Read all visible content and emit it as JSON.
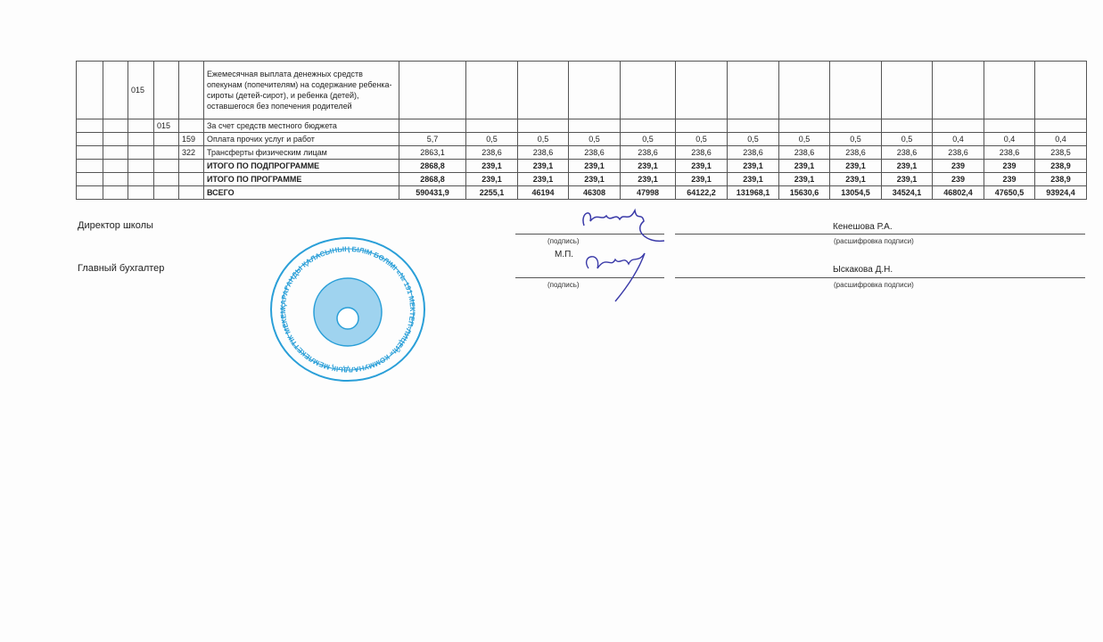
{
  "table": {
    "rows": [
      {
        "c1": "",
        "c2": "",
        "c3": "015",
        "c4": "",
        "c5": "",
        "name": "Ежемесячная выплата денежных средств опекунам (попечителям) на содержание ребенка-сироты (детей-сирот), и ребенка (детей), оставшегося без попечения родителей",
        "values": [
          "",
          "",
          "",
          "",
          "",
          "",
          "",
          "",
          "",
          "",
          "",
          "",
          ""
        ],
        "bold": false
      },
      {
        "c1": "",
        "c2": "",
        "c3": "",
        "c4": "015",
        "c5": "",
        "name": "За счет средств местного бюджета",
        "values": [
          "",
          "",
          "",
          "",
          "",
          "",
          "",
          "",
          "",
          "",
          "",
          "",
          ""
        ],
        "bold": false
      },
      {
        "c1": "",
        "c2": "",
        "c3": "",
        "c4": "",
        "c5": "159",
        "name": "Оплата прочих услуг и работ",
        "values": [
          "5,7",
          "0,5",
          "0,5",
          "0,5",
          "0,5",
          "0,5",
          "0,5",
          "0,5",
          "0,5",
          "0,5",
          "0,4",
          "0,4",
          "0,4"
        ],
        "bold": false
      },
      {
        "c1": "",
        "c2": "",
        "c3": "",
        "c4": "",
        "c5": "322",
        "name": "Трансферты физическим лицам",
        "values": [
          "2863,1",
          "238,6",
          "238,6",
          "238,6",
          "238,6",
          "238,6",
          "238,6",
          "238,6",
          "238,6",
          "238,6",
          "238,6",
          "238,6",
          "238,5"
        ],
        "bold": false
      },
      {
        "c1": "",
        "c2": "",
        "c3": "",
        "c4": "",
        "c5": "",
        "name": "ИТОГО ПО ПОДПРОГРАММЕ",
        "values": [
          "2868,8",
          "239,1",
          "239,1",
          "239,1",
          "239,1",
          "239,1",
          "239,1",
          "239,1",
          "239,1",
          "239,1",
          "239",
          "239",
          "238,9"
        ],
        "bold": true
      },
      {
        "c1": "",
        "c2": "",
        "c3": "",
        "c4": "",
        "c5": "",
        "name": "ИТОГО ПО ПРОГРАММЕ",
        "values": [
          "2868,8",
          "239,1",
          "239,1",
          "239,1",
          "239,1",
          "239,1",
          "239,1",
          "239,1",
          "239,1",
          "239,1",
          "239",
          "239",
          "238,9"
        ],
        "bold": true
      },
      {
        "c1": "",
        "c2": "",
        "c3": "",
        "c4": "",
        "c5": "",
        "name": "ВСЕГО",
        "values": [
          "590431,9",
          "2255,1",
          "46194",
          "46308",
          "47998",
          "64122,2",
          "131968,1",
          "15630,6",
          "13054,5",
          "34524,1",
          "46802,4",
          "47650,5",
          "93924,4"
        ],
        "bold": true
      }
    ]
  },
  "signatures": {
    "director_label": "Директор школы",
    "accountant_label": "Главный бухгалтер",
    "signature_caption": "(подпись)",
    "decode_caption": "(расшифровка подписи)",
    "mp": "М.П.",
    "director_name": "Кенешова Р.А.",
    "accountant_name": "Ыскакова Д.Н."
  },
  "stamp": {
    "text": "ҚАРАҒАНДЫ ҚАЛАСЫНЫҢ БІЛІМ БӨЛІМІ «№ 191 МЕКТЕП-ЛИЦЕЙІ» КОММУНАЛДЫҚ МЕМЛЕКЕТТІК МЕКЕМЕСІ БСН 928740000472",
    "color": "#2a9fd8"
  }
}
